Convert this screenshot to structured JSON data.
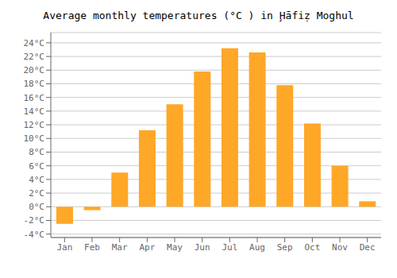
{
  "chart_data": {
    "type": "bar",
    "title": "Average monthly temperatures (°C ) in Ḩāfiẓ Moghul",
    "categories": [
      "Jan",
      "Feb",
      "Mar",
      "Apr",
      "May",
      "Jun",
      "Jul",
      "Aug",
      "Sep",
      "Oct",
      "Nov",
      "Dec"
    ],
    "values": [
      -2.5,
      -0.5,
      5.0,
      11.2,
      15.0,
      19.8,
      23.2,
      22.6,
      17.8,
      12.2,
      6.0,
      0.8
    ],
    "color": "#FFA726",
    "ylim": [
      -4.5,
      25.5
    ],
    "yticks": [
      {
        "value": -4,
        "label": "-4°C"
      },
      {
        "value": -2,
        "label": "-2°C"
      },
      {
        "value": 0,
        "label": "0°C"
      },
      {
        "value": 2,
        "label": "2°C"
      },
      {
        "value": 4,
        "label": "4°C"
      },
      {
        "value": 6,
        "label": "6°C"
      },
      {
        "value": 8,
        "label": "8°C"
      },
      {
        "value": 10,
        "label": "10°C"
      },
      {
        "value": 12,
        "label": "12°C"
      },
      {
        "value": 14,
        "label": "14°C"
      },
      {
        "value": 16,
        "label": "16°C"
      },
      {
        "value": 18,
        "label": "18°C"
      },
      {
        "value": 20,
        "label": "20°C"
      },
      {
        "value": 22,
        "label": "22°C"
      },
      {
        "value": 24,
        "label": "24°C"
      }
    ],
    "grid": true
  }
}
